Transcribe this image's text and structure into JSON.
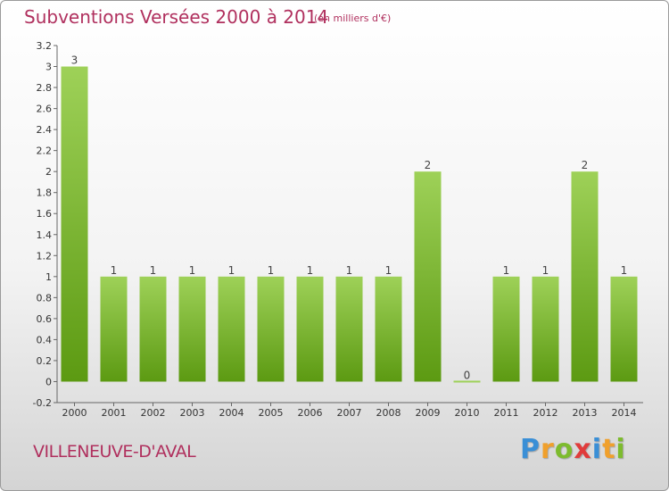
{
  "header": {
    "title": "Subventions Versées 2000 à 2014",
    "unit": "(en milliers d'€)"
  },
  "commune": "VILLENEUVE-D'AVAL",
  "logo": {
    "text": "Proxiti",
    "letters": [
      {
        "ch": "P",
        "color": "#3a8fd6"
      },
      {
        "ch": "r",
        "color": "#f0a02c"
      },
      {
        "ch": "o",
        "color": "#7dbb2e"
      },
      {
        "ch": "x",
        "color": "#e03c3c"
      },
      {
        "ch": "i",
        "color": "#3a8fd6"
      },
      {
        "ch": "t",
        "color": "#f0a02c"
      },
      {
        "ch": "i",
        "color": "#7dbb2e"
      }
    ]
  },
  "chart_data": {
    "type": "bar",
    "title": "Subventions Versées 2000 à 2014",
    "categories": [
      "2000",
      "2001",
      "2002",
      "2003",
      "2004",
      "2005",
      "2006",
      "2007",
      "2008",
      "2009",
      "2010",
      "2011",
      "2012",
      "2013",
      "2014"
    ],
    "values": [
      3,
      1,
      1,
      1,
      1,
      1,
      1,
      1,
      1,
      2,
      0,
      1,
      1,
      2,
      1
    ],
    "data_labels": [
      "3",
      "1",
      "1",
      "1",
      "1",
      "1",
      "1",
      "1",
      "1",
      "2",
      "0",
      "1",
      "1",
      "2",
      "1"
    ],
    "ylim": [
      -0.2,
      3.2
    ],
    "yticks": [
      "-0.2",
      "0",
      "0.2",
      "0.4",
      "0.6",
      "0.8",
      "1",
      "1.2",
      "1.4",
      "1.6",
      "1.8",
      "2",
      "2.2",
      "2.4",
      "2.6",
      "2.8",
      "3",
      "3.2"
    ],
    "ytick_values": [
      -0.2,
      0,
      0.2,
      0.4,
      0.6,
      0.8,
      1,
      1.2,
      1.4,
      1.6,
      1.8,
      2,
      2.2,
      2.4,
      2.6,
      2.8,
      3,
      3.2
    ],
    "grid": false,
    "bar_color_top": "#9ed158",
    "bar_color_bottom": "#5c9a12",
    "label_color": "#444444"
  }
}
